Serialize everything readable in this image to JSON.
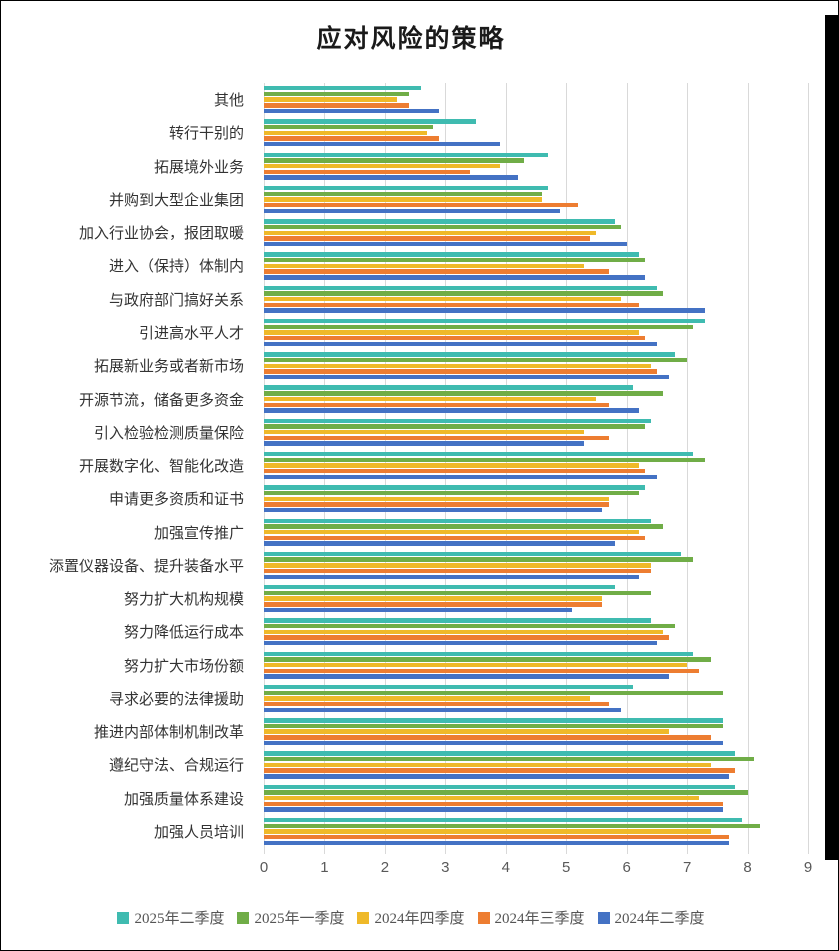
{
  "chart_data": {
    "type": "bar",
    "orientation": "horizontal",
    "title": "应对风险的策略",
    "categories": [
      "其他",
      "转行干别的",
      "拓展境外业务",
      "并购到大型企业集团",
      "加入行业协会，报团取暖",
      "进入（保持）体制内",
      "与政府部门搞好关系",
      "引进高水平人才",
      "拓展新业务或者新市场",
      "开源节流，储备更多资金",
      "引入检验检测质量保险",
      "开展数字化、智能化改造",
      "申请更多资质和证书",
      "加强宣传推广",
      "添置仪器设备、提升装备水平",
      "努力扩大机构规模",
      "努力降低运行成本",
      "努力扩大市场份额",
      "寻求必要的法律援助",
      "推进内部体制机制改革",
      "遵纪守法、合规运行",
      "加强质量体系建设",
      "加强人员培训"
    ],
    "series": [
      {
        "name": "2025年二季度",
        "color": "#3fbbb0",
        "values": [
          2.6,
          3.5,
          4.7,
          4.7,
          5.8,
          6.2,
          6.5,
          7.3,
          6.8,
          6.1,
          6.4,
          7.1,
          6.3,
          6.4,
          6.9,
          5.8,
          6.4,
          7.1,
          6.1,
          7.6,
          7.8,
          7.8,
          7.9
        ]
      },
      {
        "name": "2025年一季度",
        "color": "#70ad47",
        "values": [
          2.4,
          2.8,
          4.3,
          4.6,
          5.9,
          6.3,
          6.6,
          7.1,
          7.0,
          6.6,
          6.3,
          7.3,
          6.2,
          6.6,
          7.1,
          6.4,
          6.8,
          7.4,
          7.6,
          7.6,
          8.1,
          8.0,
          8.2
        ]
      },
      {
        "name": "2024年四季度",
        "color": "#efb929",
        "values": [
          2.2,
          2.7,
          3.9,
          4.6,
          5.5,
          5.3,
          5.9,
          6.2,
          6.4,
          5.5,
          5.3,
          6.2,
          5.7,
          6.2,
          6.4,
          5.6,
          6.6,
          7.0,
          5.4,
          6.7,
          7.4,
          7.2,
          7.4
        ]
      },
      {
        "name": "2024年三季度",
        "color": "#ed7d31",
        "values": [
          2.4,
          2.9,
          3.4,
          5.2,
          5.4,
          5.7,
          6.2,
          6.3,
          6.5,
          5.7,
          5.7,
          6.3,
          5.7,
          6.3,
          6.4,
          5.6,
          6.7,
          7.2,
          5.7,
          7.4,
          7.8,
          7.6,
          7.7
        ]
      },
      {
        "name": "2024年二季度",
        "color": "#4472c4",
        "values": [
          2.9,
          3.9,
          4.2,
          4.9,
          6.0,
          6.3,
          7.3,
          6.5,
          6.7,
          6.2,
          5.3,
          6.5,
          5.6,
          5.8,
          6.2,
          5.1,
          6.5,
          6.7,
          5.9,
          7.6,
          7.7,
          7.6,
          7.7
        ]
      }
    ],
    "xlim": [
      0,
      9
    ],
    "x_ticks": [
      0,
      1,
      2,
      3,
      4,
      5,
      6,
      7,
      8,
      9
    ],
    "grid": true,
    "legend_position": "bottom",
    "gridline_color": "#d9d9d9",
    "axis_text_color": "#595959"
  }
}
